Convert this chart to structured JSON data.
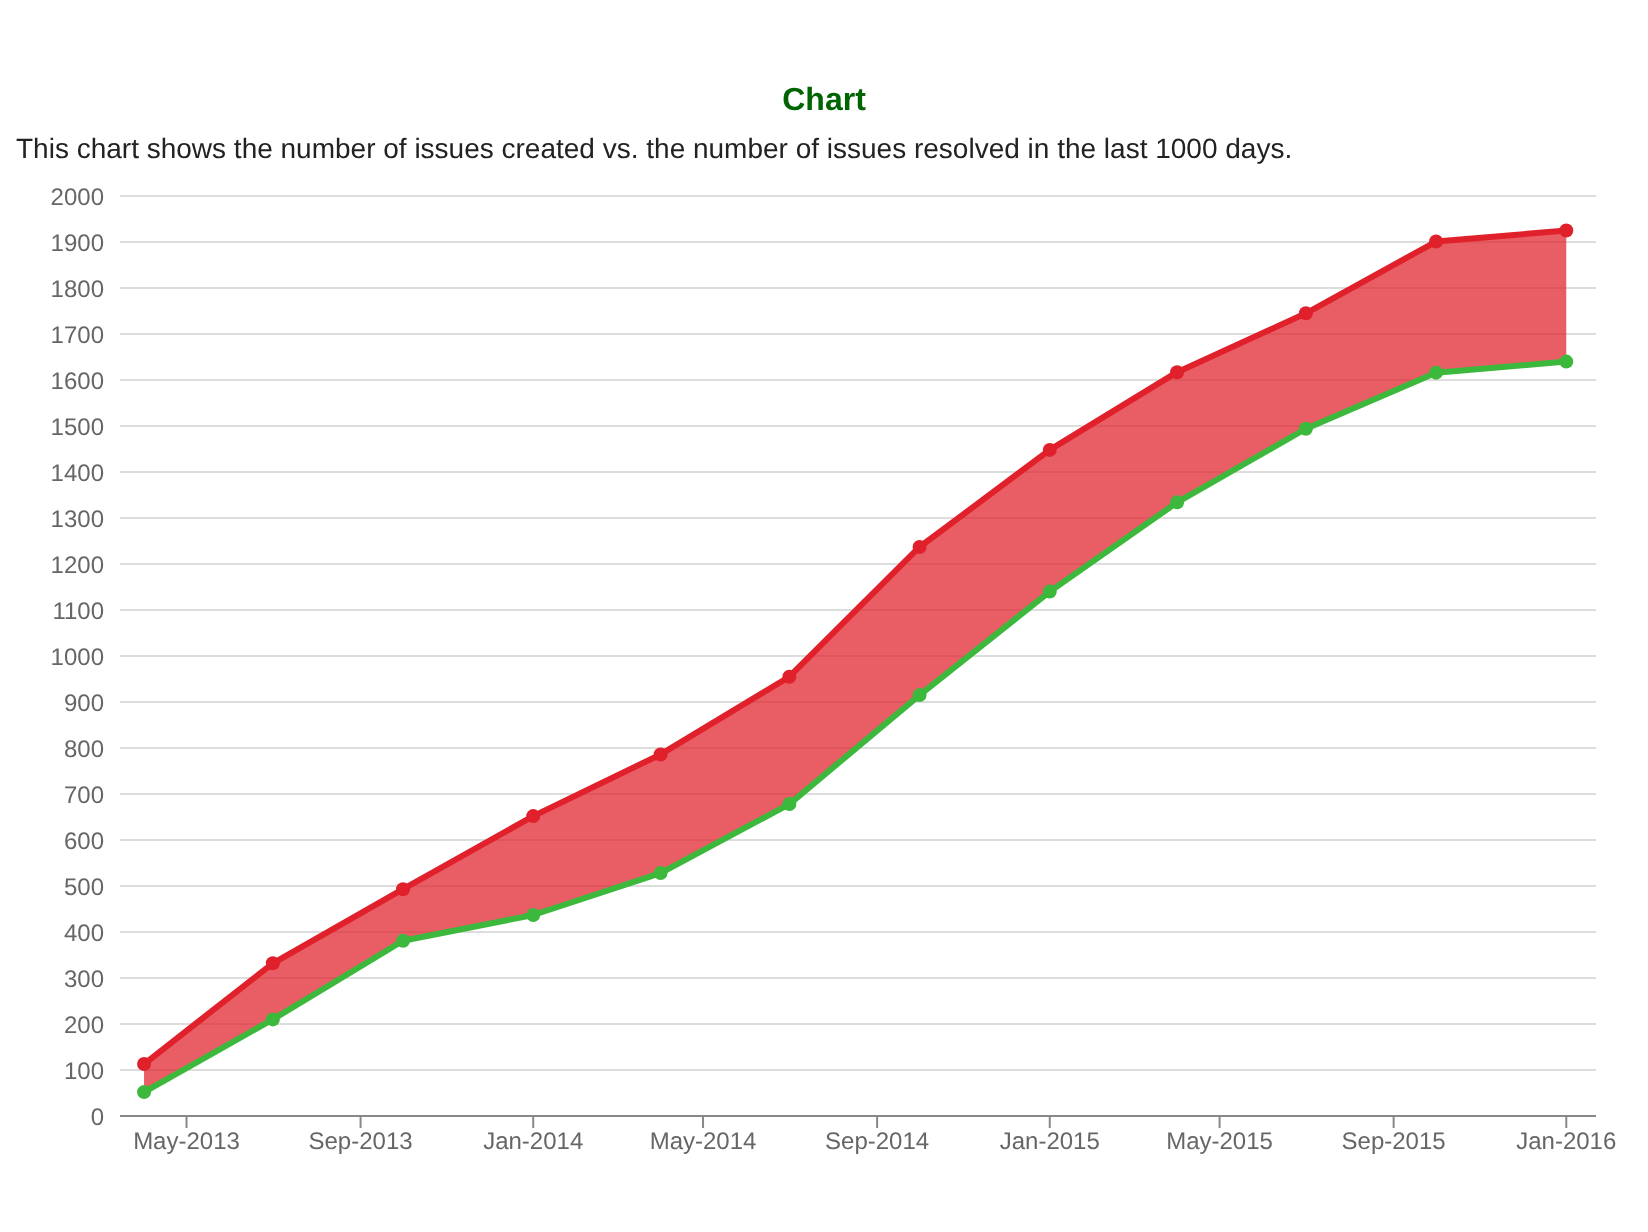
{
  "chart_data": {
    "type": "line",
    "title": "Chart",
    "subtitle": "This chart shows the number of issues created vs. the number of issues resolved in the last 1000 days.",
    "x": [
      "2013-04-01",
      "2013-07-01",
      "2013-10-01",
      "2014-01-01",
      "2014-04-01",
      "2014-07-01",
      "2014-10-01",
      "2015-01-01",
      "2015-04-01",
      "2015-07-01",
      "2015-10-01",
      "2016-01-01"
    ],
    "series": [
      {
        "color": "#e0202a",
        "values": [
          113,
          332,
          493,
          652,
          786,
          955,
          1237,
          1448,
          1617,
          1745,
          1901,
          1925
        ],
        "lower": [
          52,
          210,
          381,
          437,
          528,
          678,
          915,
          1140,
          1334,
          1494,
          1616,
          1640
        ],
        "upper": [
          113,
          332,
          493,
          652,
          786,
          955,
          1237,
          1448,
          1617,
          1745,
          1901,
          1925
        ]
      },
      {
        "color": "#3cb83c",
        "values": [
          52,
          210,
          381,
          437,
          528,
          678,
          915,
          1140,
          1334,
          1494,
          1616,
          1640
        ]
      }
    ],
    "xlim": [
      "2013-03-15",
      "2016-01-22"
    ],
    "xticks": [
      {
        "value": "2013-05-01",
        "label": "May-2013"
      },
      {
        "value": "2013-09-01",
        "label": "Sep-2013"
      },
      {
        "value": "2014-01-01",
        "label": "Jan-2014"
      },
      {
        "value": "2014-05-01",
        "label": "May-2014"
      },
      {
        "value": "2014-09-01",
        "label": "Sep-2014"
      },
      {
        "value": "2015-01-01",
        "label": "Jan-2015"
      },
      {
        "value": "2015-05-01",
        "label": "May-2015"
      },
      {
        "value": "2015-09-01",
        "label": "Sep-2015"
      },
      {
        "value": "2016-01-01",
        "label": "Jan-2016"
      }
    ],
    "ylim": [
      0,
      2000
    ],
    "yticks": [
      0,
      100,
      200,
      300,
      400,
      500,
      600,
      700,
      800,
      900,
      1000,
      1100,
      1200,
      1300,
      1400,
      1500,
      1600,
      1700,
      1800,
      1900,
      2000
    ],
    "grid": "y",
    "marker": "circle",
    "line_style": "solid",
    "legend": false
  }
}
